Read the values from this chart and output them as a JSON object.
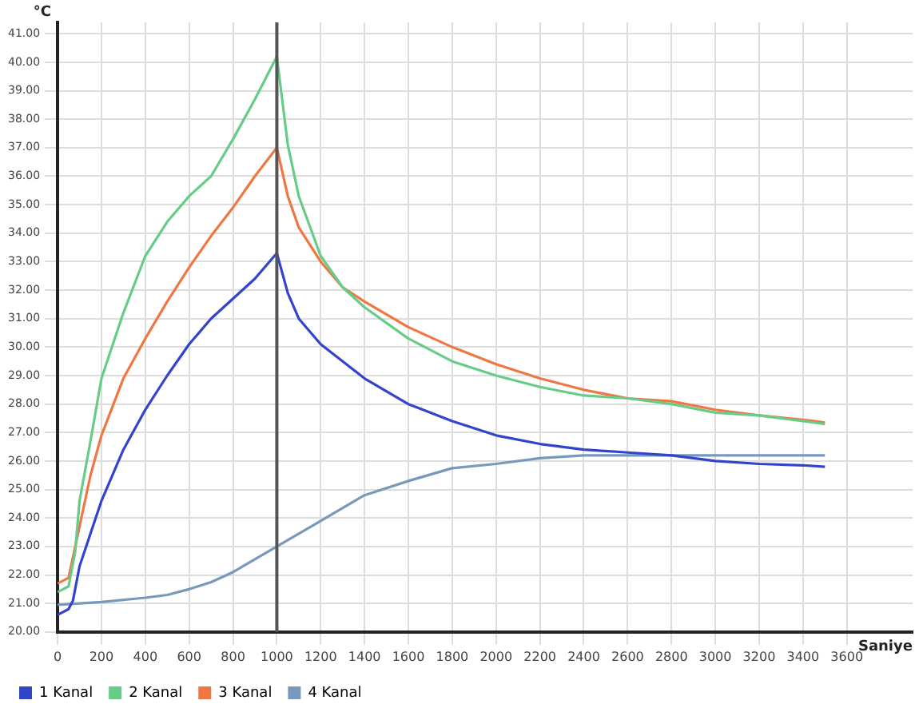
{
  "chart_data": {
    "type": "line",
    "xlabel": "Saniye",
    "ylabel": "°C",
    "xlim": [
      0,
      3900
    ],
    "xticks": [
      0,
      200,
      400,
      600,
      800,
      1000,
      1200,
      1400,
      1600,
      1800,
      2000,
      2200,
      2400,
      2600,
      2800,
      3000,
      3200,
      3400,
      3600
    ],
    "ylim": [
      20,
      41.4
    ],
    "yticks": [
      {
        "value": 20,
        "label": "20.00"
      },
      {
        "value": 21,
        "label": "21.00"
      },
      {
        "value": 22,
        "label": "22.00"
      },
      {
        "value": 23,
        "label": "23.00"
      },
      {
        "value": 24,
        "label": "24.00"
      },
      {
        "value": 25,
        "label": "25.00"
      },
      {
        "value": 26,
        "label": "26.00"
      },
      {
        "value": 27,
        "label": "27.00"
      },
      {
        "value": 28,
        "label": "28.00"
      },
      {
        "value": 29,
        "label": "29.00"
      },
      {
        "value": 30,
        "label": "30.00"
      },
      {
        "value": 31,
        "label": "31.00"
      },
      {
        "value": 32,
        "label": "32.00"
      },
      {
        "value": 33,
        "label": "33.00"
      },
      {
        "value": 34,
        "label": "34.00"
      },
      {
        "value": 35,
        "label": "35.00"
      },
      {
        "value": 36,
        "label": "36.00"
      },
      {
        "value": 37,
        "label": "37.00"
      },
      {
        "value": 38,
        "label": "38.00"
      },
      {
        "value": 39,
        "label": "39.00"
      },
      {
        "value": 40,
        "label": "40.00"
      },
      {
        "value": 41,
        "label": "41.00"
      }
    ],
    "grid": true,
    "legend": "bottom left",
    "marker": "none",
    "line_style": "solid",
    "ref_lines": [
      {
        "axis": "x",
        "value": 1000,
        "color": "#555555"
      }
    ],
    "series": [
      {
        "name": "1 Kanal",
        "color": "#3344cc",
        "x": [
          0,
          50,
          70,
          100,
          200,
          300,
          400,
          500,
          600,
          700,
          800,
          900,
          1000,
          1050,
          1100,
          1200,
          1400,
          1600,
          1800,
          2000,
          2200,
          2400,
          2600,
          2800,
          3000,
          3200,
          3400,
          3500
        ],
        "values": [
          20.6,
          20.8,
          21.1,
          22.3,
          24.6,
          26.4,
          27.8,
          29.0,
          30.1,
          31.0,
          31.7,
          32.4,
          33.3,
          31.9,
          31.0,
          30.1,
          28.9,
          28.0,
          27.4,
          26.9,
          26.6,
          26.4,
          26.3,
          26.2,
          26.0,
          25.9,
          25.85,
          25.8
        ]
      },
      {
        "name": "2 Kanal",
        "color": "#66cc88",
        "x": [
          0,
          50,
          80,
          100,
          150,
          200,
          300,
          400,
          500,
          600,
          700,
          800,
          900,
          1000,
          1050,
          1100,
          1200,
          1300,
          1400,
          1600,
          1800,
          2000,
          2200,
          2400,
          2600,
          2800,
          3000,
          3200,
          3400,
          3500
        ],
        "values": [
          21.4,
          21.6,
          22.8,
          24.6,
          26.7,
          28.9,
          31.2,
          33.2,
          34.4,
          35.3,
          36.0,
          37.3,
          38.7,
          40.2,
          37.1,
          35.3,
          33.2,
          32.1,
          31.4,
          30.3,
          29.5,
          29.0,
          28.6,
          28.3,
          28.2,
          28.0,
          27.7,
          27.6,
          27.4,
          27.3
        ]
      },
      {
        "name": "3 Kanal",
        "color": "#ee7744",
        "x": [
          0,
          50,
          100,
          150,
          200,
          300,
          400,
          500,
          600,
          700,
          800,
          900,
          1000,
          1050,
          1100,
          1200,
          1300,
          1400,
          1600,
          1800,
          2000,
          2200,
          2400,
          2600,
          2800,
          3000,
          3200,
          3400,
          3500
        ],
        "values": [
          21.7,
          21.9,
          23.7,
          25.5,
          26.9,
          28.9,
          30.3,
          31.6,
          32.8,
          33.9,
          34.9,
          36.0,
          37.0,
          35.3,
          34.2,
          33.0,
          32.1,
          31.6,
          30.7,
          30.0,
          29.4,
          28.9,
          28.5,
          28.2,
          28.1,
          27.8,
          27.6,
          27.45,
          27.35
        ]
      },
      {
        "name": "4 Kanal",
        "color": "#7799bb",
        "x": [
          0,
          200,
          400,
          500,
          600,
          700,
          800,
          900,
          1000,
          1200,
          1400,
          1600,
          1800,
          2000,
          2200,
          2400,
          2600,
          3000,
          3500
        ],
        "values": [
          20.95,
          21.05,
          21.2,
          21.3,
          21.5,
          21.75,
          22.1,
          22.55,
          23.0,
          23.9,
          24.8,
          25.3,
          25.75,
          25.9,
          26.1,
          26.2,
          26.2,
          26.2,
          26.2
        ]
      }
    ]
  }
}
